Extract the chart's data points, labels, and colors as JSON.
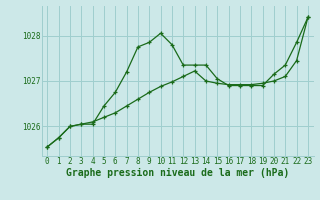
{
  "line1_x": [
    0,
    1,
    2,
    3,
    4,
    5,
    6,
    7,
    8,
    9,
    10,
    11,
    12,
    13,
    14,
    15,
    16,
    17,
    18,
    19,
    20,
    21,
    22,
    23
  ],
  "line1_y": [
    1025.55,
    1025.75,
    1026.0,
    1026.05,
    1026.05,
    1026.45,
    1026.75,
    1027.2,
    1027.75,
    1027.85,
    1028.05,
    1027.8,
    1027.35,
    1027.35,
    1027.35,
    1027.05,
    1026.9,
    1026.9,
    1026.9,
    1026.9,
    1027.15,
    1027.35,
    1027.85,
    1028.4
  ],
  "line2_x": [
    0,
    1,
    2,
    3,
    4,
    5,
    6,
    7,
    8,
    9,
    10,
    11,
    12,
    13,
    14,
    15,
    16,
    17,
    18,
    19,
    20,
    21,
    22,
    23
  ],
  "line2_y": [
    1025.55,
    1025.75,
    1026.0,
    1026.05,
    1026.1,
    1026.2,
    1026.3,
    1026.45,
    1026.6,
    1026.75,
    1026.88,
    1026.98,
    1027.1,
    1027.22,
    1027.0,
    1026.95,
    1026.92,
    1026.92,
    1026.92,
    1026.95,
    1027.0,
    1027.1,
    1027.45,
    1028.4
  ],
  "line_color": "#1a6b1a",
  "bg_color": "#cce8e8",
  "grid_color": "#9fcece",
  "xlabel": "Graphe pression niveau de la mer (hPa)",
  "ylim": [
    1025.35,
    1028.65
  ],
  "xlim": [
    -0.5,
    23.5
  ],
  "xticks": [
    0,
    1,
    2,
    3,
    4,
    5,
    6,
    7,
    8,
    9,
    10,
    11,
    12,
    13,
    14,
    15,
    16,
    17,
    18,
    19,
    20,
    21,
    22,
    23
  ],
  "yticks": [
    1026,
    1027,
    1028
  ],
  "tick_fontsize": 5.5,
  "xlabel_fontsize": 7.0
}
